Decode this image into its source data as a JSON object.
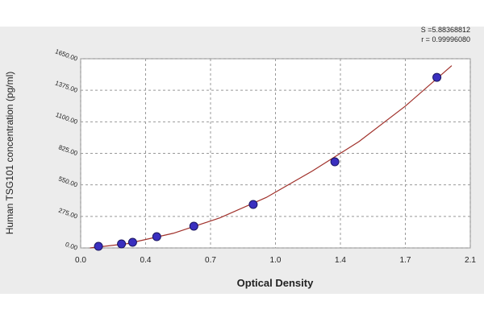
{
  "chart_data": {
    "type": "scatter",
    "x_label": "Optical Density",
    "y_label": "Human TSG101 concentration (pg/ml)",
    "annotations": [
      "S =5.88368812",
      "r = 0.99996080"
    ],
    "xlim": [
      0,
      2.1
    ],
    "xticks": [
      {
        "value": 0,
        "label": "0.0"
      },
      {
        "value": 0.35,
        "label": "0.4"
      },
      0.7,
      {
        "value": 1.05,
        "label": "1.0"
      },
      1.4,
      {
        "value": 1.75,
        "label": "1.7"
      },
      2.1
    ],
    "ylim": [
      0,
      1650
    ],
    "yticks": [
      {
        "value": 0,
        "label": "0.00"
      },
      {
        "value": 275,
        "label": "275.00"
      },
      {
        "value": 550,
        "label": "550.00"
      },
      {
        "value": 825,
        "label": "825.00"
      },
      {
        "value": 1100,
        "label": "1100.00"
      },
      {
        "value": 1375,
        "label": "1375.00"
      },
      {
        "value": 1650,
        "label": "1650.00"
      }
    ],
    "grid": true,
    "series": [
      {
        "kind": "line",
        "color": "#a0302a",
        "x": [
          0.05,
          0.25,
          0.5,
          0.75,
          1.0,
          1.25,
          1.5,
          1.75,
          2.0
        ],
        "values": [
          0,
          37,
          128,
          262,
          440,
          672,
          928,
          1237,
          1590
        ]
      },
      {
        "kind": "points",
        "color": "#3a2fbf",
        "x": [
          0.096,
          0.22,
          0.28,
          0.41,
          0.61,
          0.93,
          1.37,
          1.92
        ],
        "values": [
          14,
          35,
          49,
          98,
          190,
          379,
          751,
          1488
        ]
      }
    ]
  }
}
